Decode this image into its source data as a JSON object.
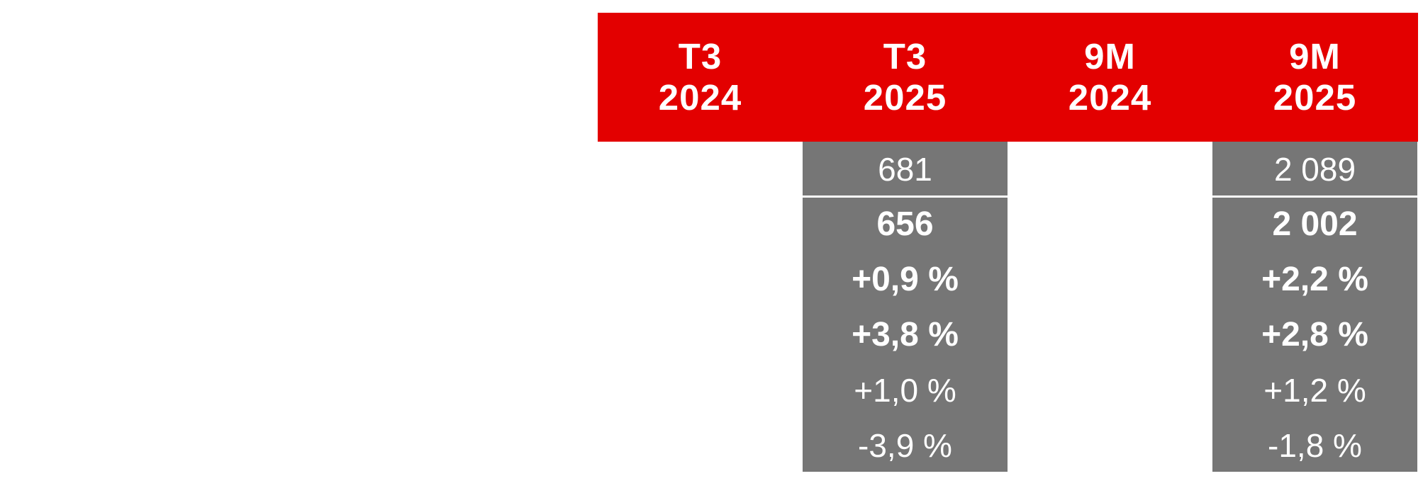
{
  "colors": {
    "header": "#e30000",
    "value_column": "#767676",
    "text": "#ffffff"
  },
  "headers": [
    {
      "line1": "T3",
      "line2": "2024"
    },
    {
      "line1": "T3",
      "line2": "2025"
    },
    {
      "line1": "9M",
      "line2": "2024"
    },
    {
      "line1": "9M",
      "line2": "2025"
    }
  ],
  "columns": {
    "t3_2025": [
      "681",
      "656",
      "+0,9 %",
      "+3,8 %",
      "+1,0 %",
      "-3,9 %"
    ],
    "9m_2025": [
      "2 089",
      "2 002",
      "+2,2 %",
      "+2,8 %",
      "+1,2 %",
      "-1,8 %"
    ]
  }
}
